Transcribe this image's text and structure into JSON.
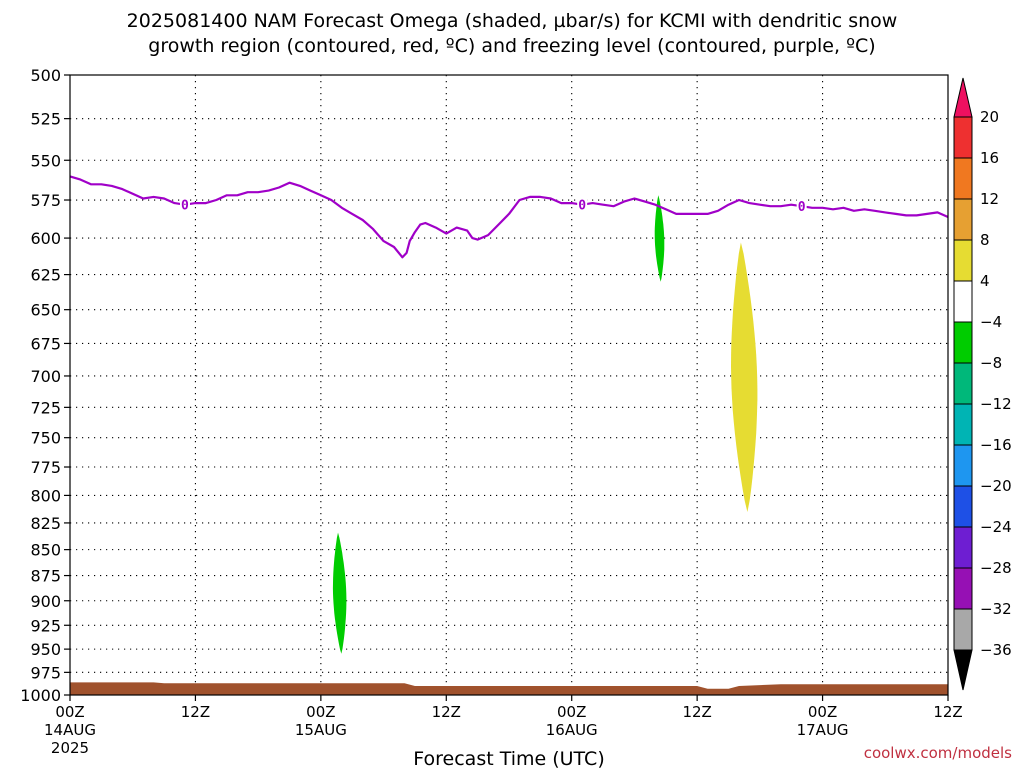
{
  "title": {
    "line1": "2025081400 NAM Forecast Omega (shaded, µbar/s) for KCMI with dendritic snow",
    "line2": "growth region (contoured, red, ºC) and freezing level (contoured, purple, ºC)"
  },
  "credit": "coolwx.com/models",
  "chart_data": {
    "type": "contour",
    "xlabel": "Forecast Time (UTC)",
    "ylabel": "",
    "x_unit": "hours since 2025-08-14 00Z",
    "xlim": [
      0,
      84
    ],
    "y_scale": "log",
    "ylim": [
      1000,
      500
    ],
    "grid": true,
    "x_ticks": [
      {
        "hour": 0,
        "label": "00Z",
        "date": "14AUG",
        "year": "2025"
      },
      {
        "hour": 12,
        "label": "12Z"
      },
      {
        "hour": 24,
        "label": "00Z",
        "date": "15AUG"
      },
      {
        "hour": 36,
        "label": "12Z"
      },
      {
        "hour": 48,
        "label": "00Z",
        "date": "16AUG"
      },
      {
        "hour": 60,
        "label": "12Z"
      },
      {
        "hour": 72,
        "label": "00Z",
        "date": "17AUG"
      },
      {
        "hour": 84,
        "label": "12Z"
      }
    ],
    "y_ticks": [
      500,
      525,
      550,
      575,
      600,
      625,
      650,
      675,
      700,
      725,
      750,
      775,
      800,
      825,
      850,
      875,
      900,
      925,
      950,
      975,
      1000
    ],
    "freezing_level": {
      "name": "freezing level (0 ºC)",
      "color": "#a000c8",
      "label": "0",
      "label_hours": [
        11,
        49,
        70
      ],
      "points": [
        [
          0,
          560
        ],
        [
          1,
          562
        ],
        [
          2,
          565
        ],
        [
          3,
          565
        ],
        [
          4,
          566
        ],
        [
          5,
          568
        ],
        [
          6,
          571
        ],
        [
          7,
          574
        ],
        [
          8,
          573
        ],
        [
          9,
          574
        ],
        [
          10,
          577
        ],
        [
          11,
          578
        ],
        [
          12,
          577
        ],
        [
          13,
          577
        ],
        [
          14,
          575
        ],
        [
          15,
          572
        ],
        [
          16,
          572
        ],
        [
          17,
          570
        ],
        [
          18,
          570
        ],
        [
          19,
          569
        ],
        [
          20,
          567
        ],
        [
          21,
          564
        ],
        [
          22,
          566
        ],
        [
          23,
          569
        ],
        [
          24,
          572
        ],
        [
          25,
          575
        ],
        [
          26,
          580
        ],
        [
          27,
          584
        ],
        [
          28,
          588
        ],
        [
          29,
          594
        ],
        [
          30,
          602
        ],
        [
          31,
          606
        ],
        [
          31.8,
          613
        ],
        [
          32.2,
          610
        ],
        [
          32.5,
          602
        ],
        [
          33,
          596
        ],
        [
          33.5,
          591
        ],
        [
          34,
          590
        ],
        [
          35,
          593
        ],
        [
          36,
          597
        ],
        [
          37,
          593
        ],
        [
          38,
          595
        ],
        [
          38.5,
          600
        ],
        [
          39,
          601
        ],
        [
          40,
          598
        ],
        [
          41,
          591
        ],
        [
          42,
          584
        ],
        [
          43,
          575
        ],
        [
          44,
          573
        ],
        [
          45,
          573
        ],
        [
          46,
          574
        ],
        [
          47,
          577
        ],
        [
          48,
          577
        ],
        [
          49,
          578
        ],
        [
          50,
          577
        ],
        [
          51,
          578
        ],
        [
          52,
          579
        ],
        [
          53,
          576
        ],
        [
          54,
          574
        ],
        [
          55,
          576
        ],
        [
          56,
          578
        ],
        [
          57,
          581
        ],
        [
          58,
          584
        ],
        [
          59,
          584
        ],
        [
          60,
          584
        ],
        [
          61,
          584
        ],
        [
          62,
          582
        ],
        [
          63,
          578
        ],
        [
          64,
          575
        ],
        [
          65,
          577
        ],
        [
          66,
          578
        ],
        [
          67,
          579
        ],
        [
          68,
          579
        ],
        [
          69,
          578
        ],
        [
          70,
          579
        ],
        [
          71,
          580
        ],
        [
          72,
          580
        ],
        [
          73,
          581
        ],
        [
          74,
          580
        ],
        [
          75,
          582
        ],
        [
          76,
          581
        ],
        [
          77,
          582
        ],
        [
          78,
          583
        ],
        [
          79,
          584
        ],
        [
          80,
          585
        ],
        [
          81,
          585
        ],
        [
          82,
          584
        ],
        [
          83,
          583
        ],
        [
          84,
          586
        ]
      ]
    },
    "omega_regions": [
      {
        "value_range": [
          -8,
          -4
        ],
        "color": "#00cc00",
        "hour_center": 25.8,
        "p_top": 834,
        "p_bottom": 955
      },
      {
        "value_range": [
          -8,
          -4
        ],
        "color": "#00cc00",
        "hour_center": 56.4,
        "p_top": 572,
        "p_bottom": 630
      },
      {
        "value_range": [
          4,
          8
        ],
        "color": "#e6dc32",
        "hour_center": 64.5,
        "p_top": 603,
        "p_bottom": 815
      }
    ],
    "surface": {
      "color": "#a0522d",
      "points": [
        [
          0,
          986
        ],
        [
          8,
          986
        ],
        [
          9,
          987
        ],
        [
          32,
          987
        ],
        [
          33,
          990
        ],
        [
          60,
          990
        ],
        [
          61,
          993
        ],
        [
          63,
          993
        ],
        [
          64,
          990
        ],
        [
          68,
          988
        ],
        [
          84,
          988
        ]
      ]
    },
    "colorbar": {
      "labels": [
        "20",
        "16",
        "12",
        "8",
        "4",
        "−4",
        "−8",
        "−12",
        "−16",
        "−20",
        "−24",
        "−28",
        "−32",
        "−36"
      ],
      "colors": [
        "#ee1060",
        "#ee3030",
        "#f07820",
        "#e6a032",
        "#e6dc32",
        "#ffffff",
        "#00cc00",
        "#00b87a",
        "#00b4b4",
        "#1e96f0",
        "#1e50e6",
        "#6e1ed2",
        "#9610b4",
        "#a8a8a8",
        "#000000"
      ]
    }
  }
}
